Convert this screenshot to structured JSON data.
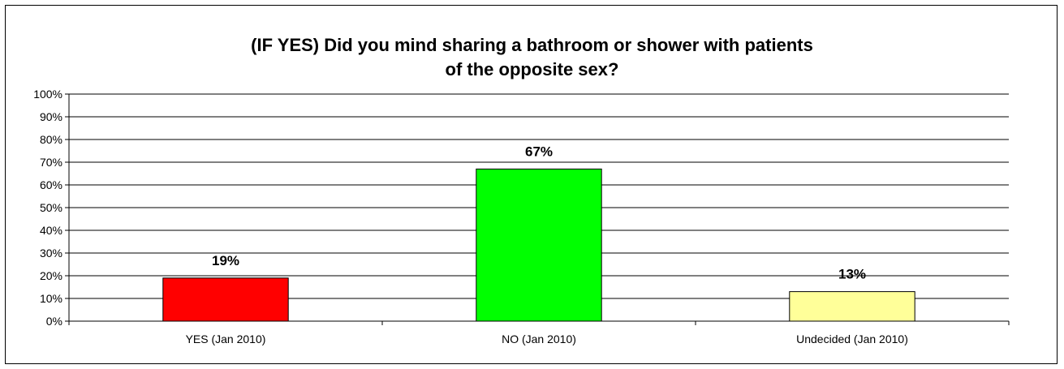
{
  "chart_data": {
    "type": "bar",
    "title_lines": [
      "(IF YES) Did you mind sharing a bathroom or shower with patients",
      "of the opposite sex?"
    ],
    "categories": [
      "YES (Jan 2010)",
      "NO (Jan 2010)",
      "Undecided (Jan 2010)"
    ],
    "values": [
      19,
      67,
      13
    ],
    "value_labels": [
      "19%",
      "67%",
      "13%"
    ],
    "colors": [
      "#ff0000",
      "#00ff00",
      "#ffff99"
    ],
    "y_ticks": [
      "0%",
      "10%",
      "20%",
      "30%",
      "40%",
      "50%",
      "60%",
      "70%",
      "80%",
      "90%",
      "100%"
    ],
    "ylim": [
      0,
      100
    ],
    "grid": true,
    "legend": "none"
  }
}
